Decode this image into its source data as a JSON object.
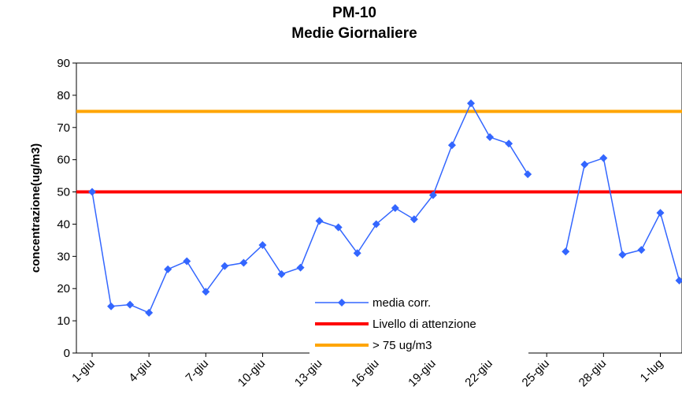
{
  "chart_data": {
    "type": "line",
    "title": [
      "PM-10",
      "Medie Giornaliere"
    ],
    "y_label": "concentrazione(ug/m3)",
    "categories": [
      "1-giu",
      null,
      null,
      "4-giu",
      null,
      null,
      "7-giu",
      null,
      null,
      "10-giu",
      null,
      null,
      "13-giu",
      null,
      null,
      "16-giu",
      null,
      null,
      "19-giu",
      null,
      null,
      "22-giu",
      null,
      null,
      "25-giu",
      null,
      null,
      "28-giu",
      null,
      null,
      "1-lug",
      null
    ],
    "series": [
      {
        "name": "media corr.",
        "color": "#3366ff",
        "values": [
          50,
          14.5,
          15,
          12.5,
          26,
          28.5,
          19,
          27,
          28,
          33.5,
          24.5,
          26.5,
          41,
          39,
          31,
          40,
          45,
          41.5,
          49,
          64.5,
          77.5,
          67,
          65,
          55.5,
          null,
          31.5,
          58.5,
          60.5,
          30.5,
          32,
          43.5,
          22.5
        ]
      }
    ],
    "reference_lines": [
      {
        "name": "Livello di attenzione",
        "color": "#ff0000",
        "value": 50
      },
      {
        "name": "> 75 ug/m3",
        "color": "#ffa500",
        "value": 75
      }
    ],
    "ylim": [
      0,
      90
    ],
    "yticks": [
      0,
      10,
      20,
      30,
      40,
      50,
      60,
      70,
      80,
      90
    ]
  }
}
